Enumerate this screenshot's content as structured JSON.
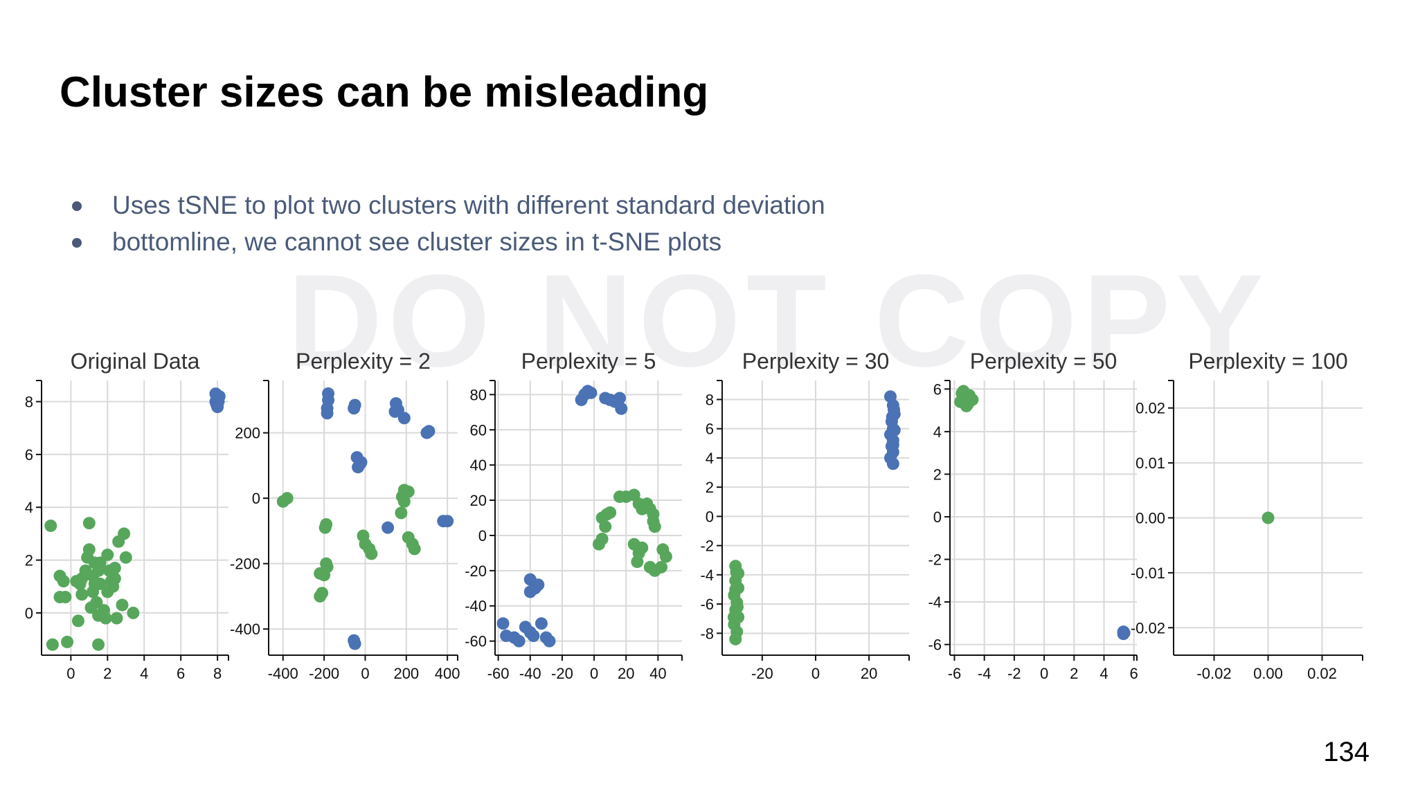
{
  "slide": {
    "title": "Cluster sizes can be misleading",
    "bullets": [
      "Uses tSNE to plot two clusters with different standard deviation",
      "bottomline, we cannot see cluster sizes in t-SNE plots"
    ],
    "watermark": "DO NOT COPY",
    "page_number": "134"
  },
  "colors": {
    "green": "#57a65c",
    "blue": "#4a72b4",
    "grid": "#d9d9d9",
    "axis": "#111111"
  },
  "chart_data": [
    {
      "type": "scatter",
      "title": "Original Data",
      "xlim": [
        -1.6,
        8.6
      ],
      "ylim": [
        -1.6,
        8.8
      ],
      "xticks": [
        0,
        2,
        4,
        6,
        8
      ],
      "yticks": [
        0,
        2,
        4,
        6,
        8
      ],
      "xtick_labels": [
        "0",
        "2",
        "4",
        "6",
        "8"
      ],
      "ytick_labels": [
        "0",
        "2",
        "4",
        "6",
        "8"
      ],
      "series": [
        {
          "color": "green",
          "points": [
            [
              -1.1,
              3.3
            ],
            [
              -0.6,
              1.4
            ],
            [
              -0.4,
              1.2
            ],
            [
              -0.3,
              0.6
            ],
            [
              -1.0,
              -1.2
            ],
            [
              -0.2,
              -1.1
            ],
            [
              0.3,
              1.2
            ],
            [
              0.5,
              1.1
            ],
            [
              0.6,
              0.7
            ],
            [
              0.6,
              1.3
            ],
            [
              0.8,
              1.6
            ],
            [
              0.9,
              2.1
            ],
            [
              1.0,
              2.4
            ],
            [
              1.0,
              3.4
            ],
            [
              1.1,
              0.2
            ],
            [
              1.2,
              1.4
            ],
            [
              1.2,
              0.8
            ],
            [
              1.3,
              1.9
            ],
            [
              1.3,
              1.1
            ],
            [
              1.4,
              0.4
            ],
            [
              1.5,
              1.6
            ],
            [
              1.5,
              -0.1
            ],
            [
              1.5,
              -1.2
            ],
            [
              1.6,
              1.9
            ],
            [
              1.6,
              1.1
            ],
            [
              1.8,
              0.1
            ],
            [
              1.9,
              -0.2
            ],
            [
              2.0,
              0.8
            ],
            [
              2.0,
              2.2
            ],
            [
              2.1,
              1.6
            ],
            [
              2.2,
              1.2
            ],
            [
              2.3,
              1.0
            ],
            [
              2.4,
              1.7
            ],
            [
              2.4,
              1.3
            ],
            [
              2.5,
              -0.2
            ],
            [
              2.6,
              2.7
            ],
            [
              2.8,
              0.3
            ],
            [
              2.9,
              3.0
            ],
            [
              3.0,
              2.1
            ],
            [
              3.4,
              0.0
            ],
            [
              0.4,
              -0.3
            ],
            [
              -0.6,
              0.6
            ]
          ]
        },
        {
          "color": "blue",
          "points": [
            [
              7.9,
              8.0
            ],
            [
              7.9,
              8.3
            ],
            [
              8.0,
              8.1
            ],
            [
              8.0,
              7.8
            ],
            [
              8.1,
              8.2
            ],
            [
              7.95,
              7.9
            ],
            [
              8.05,
              8.0
            ]
          ]
        }
      ]
    },
    {
      "type": "scatter",
      "title": "Perplexity = 2",
      "xlim": [
        -470,
        450
      ],
      "ylim": [
        -480,
        360
      ],
      "xticks": [
        -400,
        -200,
        0,
        200,
        400
      ],
      "yticks": [
        -400,
        -200,
        0,
        200
      ],
      "xtick_labels": [
        "-400",
        "-200",
        "0",
        "200",
        "400"
      ],
      "ytick_labels": [
        "-400",
        "-200",
        "0",
        "200"
      ],
      "series": [
        {
          "color": "blue",
          "points": [
            [
              -180,
              320
            ],
            [
              -180,
              300
            ],
            [
              -185,
              275
            ],
            [
              -185,
              260
            ],
            [
              -50,
              285
            ],
            [
              -55,
              275
            ],
            [
              150,
              290
            ],
            [
              145,
              265
            ],
            [
              160,
              270
            ],
            [
              190,
              245
            ],
            [
              300,
              200
            ],
            [
              310,
              205
            ],
            [
              -40,
              125
            ],
            [
              -25,
              105
            ],
            [
              -35,
              95
            ],
            [
              -20,
              110
            ],
            [
              110,
              -90
            ],
            [
              380,
              -70
            ],
            [
              400,
              -70
            ],
            [
              -55,
              -435
            ],
            [
              -50,
              -445
            ]
          ]
        },
        {
          "color": "green",
          "points": [
            [
              -400,
              -10
            ],
            [
              -380,
              0
            ],
            [
              -195,
              -90
            ],
            [
              -190,
              -80
            ],
            [
              -200,
              -235
            ],
            [
              -220,
              -230
            ],
            [
              -210,
              -290
            ],
            [
              -220,
              -300
            ],
            [
              -190,
              -200
            ],
            [
              -185,
              -210
            ],
            [
              -10,
              -115
            ],
            [
              0,
              -140
            ],
            [
              20,
              -155
            ],
            [
              30,
              -170
            ],
            [
              190,
              25
            ],
            [
              195,
              15
            ],
            [
              180,
              5
            ],
            [
              210,
              20
            ],
            [
              210,
              -120
            ],
            [
              230,
              -140
            ],
            [
              240,
              -155
            ],
            [
              175,
              -45
            ],
            [
              190,
              -10
            ]
          ]
        }
      ]
    },
    {
      "type": "scatter",
      "title": "Perplexity = 5",
      "xlim": [
        -62,
        55
      ],
      "ylim": [
        -68,
        88
      ],
      "xticks": [
        -60,
        -40,
        -20,
        0,
        20,
        40
      ],
      "yticks": [
        -60,
        -40,
        -20,
        0,
        20,
        40,
        60,
        80
      ],
      "xtick_labels": [
        "-60",
        "-40",
        "-20",
        "0",
        "20",
        "40"
      ],
      "ytick_labels": [
        "-60",
        "-40",
        "-20",
        "0",
        "20",
        "40",
        "60",
        "80"
      ],
      "series": [
        {
          "color": "blue",
          "points": [
            [
              -8,
              77
            ],
            [
              -6,
              80
            ],
            [
              -4,
              82
            ],
            [
              -2,
              81
            ],
            [
              7,
              78
            ],
            [
              10,
              77
            ],
            [
              13,
              76
            ],
            [
              16,
              78
            ],
            [
              17,
              72
            ],
            [
              -57,
              -50
            ],
            [
              -55,
              -57
            ],
            [
              -50,
              -58
            ],
            [
              -47,
              -60
            ],
            [
              -43,
              -52
            ],
            [
              -40,
              -55
            ],
            [
              -38,
              -57
            ],
            [
              -33,
              -50
            ],
            [
              -30,
              -58
            ],
            [
              -28,
              -60
            ],
            [
              -40,
              -25
            ],
            [
              -37,
              -30
            ],
            [
              -40,
              -32
            ],
            [
              -35,
              -28
            ]
          ]
        },
        {
          "color": "green",
          "points": [
            [
              16,
              22
            ],
            [
              20,
              22
            ],
            [
              25,
              23
            ],
            [
              28,
              18
            ],
            [
              30,
              15
            ],
            [
              33,
              18
            ],
            [
              35,
              15
            ],
            [
              37,
              12
            ],
            [
              38,
              5
            ],
            [
              37,
              8
            ],
            [
              25,
              -5
            ],
            [
              28,
              -10
            ],
            [
              27,
              -15
            ],
            [
              30,
              -7
            ],
            [
              35,
              -18
            ],
            [
              38,
              -20
            ],
            [
              42,
              -18
            ],
            [
              43,
              -8
            ],
            [
              45,
              -12
            ],
            [
              5,
              10
            ],
            [
              8,
              12
            ],
            [
              10,
              13
            ],
            [
              7,
              5
            ],
            [
              5,
              -2
            ],
            [
              3,
              -5
            ]
          ]
        }
      ]
    },
    {
      "type": "scatter",
      "title": "Perplexity = 30",
      "xlim": [
        -35,
        35
      ],
      "ylim": [
        -9.5,
        9.3
      ],
      "xticks": [
        -20,
        0,
        20
      ],
      "yticks": [
        -8,
        -6,
        -4,
        -2,
        0,
        2,
        4,
        6,
        8
      ],
      "xtick_labels": [
        "-20",
        "0",
        "20"
      ],
      "ytick_labels": [
        "-8",
        "-6",
        "-4",
        "-2",
        "0",
        "2",
        "4",
        "6",
        "8"
      ],
      "series": [
        {
          "color": "blue",
          "points": [
            [
              28,
              8.2
            ],
            [
              29,
              7.6
            ],
            [
              29.5,
              7.0
            ],
            [
              28.5,
              6.5
            ],
            [
              29,
              6.0
            ],
            [
              28,
              5.6
            ],
            [
              29,
              5.2
            ],
            [
              28.5,
              4.8
            ],
            [
              29,
              4.4
            ],
            [
              28,
              4.0
            ],
            [
              29,
              3.6
            ],
            [
              29.5,
              5.9
            ],
            [
              29,
              4.9
            ],
            [
              28.7,
              6.8
            ],
            [
              29.3,
              7.3
            ]
          ]
        },
        {
          "color": "green",
          "points": [
            [
              -30,
              -3.4
            ],
            [
              -29,
              -3.9
            ],
            [
              -30,
              -4.4
            ],
            [
              -29,
              -4.9
            ],
            [
              -30.5,
              -5.4
            ],
            [
              -29.5,
              -5.9
            ],
            [
              -30,
              -6.4
            ],
            [
              -29,
              -6.9
            ],
            [
              -30.5,
              -7.4
            ],
            [
              -29.5,
              -7.9
            ],
            [
              -30,
              -8.4
            ],
            [
              -30,
              -5.0
            ],
            [
              -29.3,
              -6.2
            ],
            [
              -30.6,
              -6.9
            ],
            [
              -29.7,
              -3.8
            ]
          ]
        }
      ]
    },
    {
      "type": "scatter",
      "title": "Perplexity = 50",
      "xlim": [
        -6.3,
        6.2
      ],
      "ylim": [
        -6.5,
        6.4
      ],
      "xticks": [
        -6,
        -4,
        -2,
        0,
        2,
        4,
        6
      ],
      "yticks": [
        -6,
        -4,
        -2,
        0,
        2,
        4,
        6
      ],
      "xtick_labels": [
        "-6",
        "-4",
        "-2",
        "0",
        "2",
        "4",
        "6"
      ],
      "ytick_labels": [
        "-6",
        "-4",
        "-2",
        "0",
        "2",
        "4",
        "6"
      ],
      "series": [
        {
          "color": "green",
          "points": [
            [
              -5.5,
              5.8
            ],
            [
              -5.3,
              5.6
            ],
            [
              -5.6,
              5.4
            ],
            [
              -5.2,
              5.2
            ],
            [
              -5.0,
              5.7
            ],
            [
              -4.8,
              5.5
            ],
            [
              -5.4,
              5.9
            ],
            [
              -5.1,
              5.3
            ]
          ]
        },
        {
          "color": "blue",
          "points": [
            [
              5.3,
              -5.4
            ],
            [
              5.35,
              -5.45
            ],
            [
              5.3,
              -5.5
            ]
          ]
        }
      ]
    },
    {
      "type": "scatter",
      "title": "Perplexity = 100",
      "xlim": [
        -0.035,
        0.035
      ],
      "ylim": [
        -0.025,
        0.025
      ],
      "xticks": [
        -0.02,
        0.0,
        0.02
      ],
      "yticks": [
        -0.02,
        -0.01,
        0.0,
        0.01,
        0.02
      ],
      "xtick_labels": [
        "-0.02",
        "0.00",
        "0.02"
      ],
      "ytick_labels": [
        "-0.02",
        "-0.01",
        "0.00",
        "0.01",
        "0.02"
      ],
      "series": [
        {
          "color": "green",
          "points": [
            [
              0.0,
              0.0
            ]
          ]
        }
      ]
    }
  ]
}
